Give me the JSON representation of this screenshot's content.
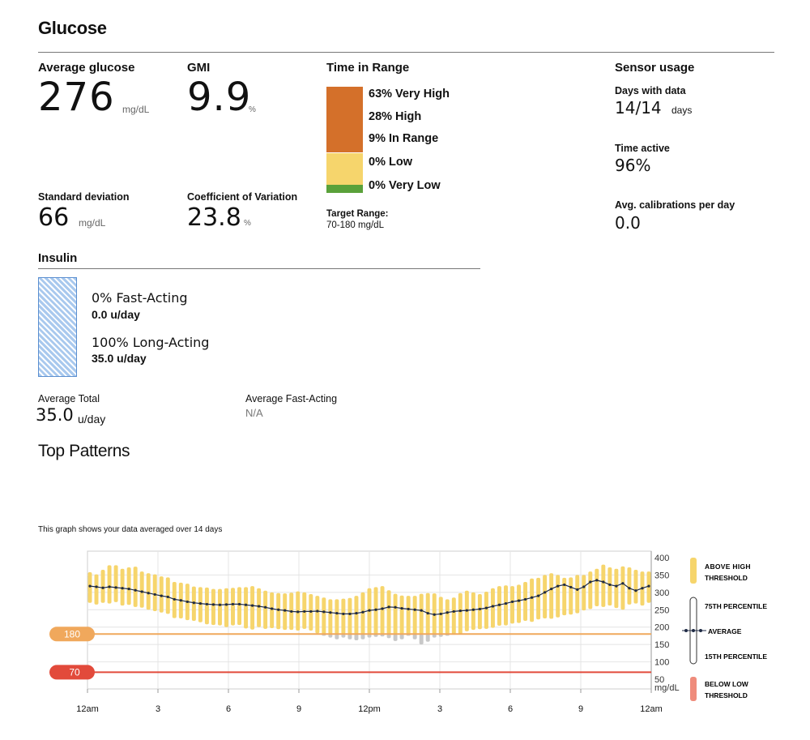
{
  "header": {
    "title": "Glucose"
  },
  "glucose": {
    "avg_label": "Average glucose",
    "avg_value": "276",
    "avg_unit": "mg/dL",
    "gmi_label": "GMI",
    "gmi_value": "9.9",
    "gmi_unit": "%",
    "sd_label": "Standard deviation",
    "sd_value": "66",
    "sd_unit": "mg/dL",
    "cv_label": "Coefficient of Variation",
    "cv_value": "23.8",
    "cv_unit": "%"
  },
  "time_in_range": {
    "title": "Time in Range",
    "items": [
      {
        "label": "63% Very High",
        "percent": 63,
        "color": "#d4702a"
      },
      {
        "label": "28% High",
        "percent": 28,
        "color": "#d4702a"
      },
      {
        "label": "9% In Range",
        "percent": 9,
        "color": "#f6d56c"
      },
      {
        "label": "0% Low",
        "percent": 0,
        "color": "#f6d56c"
      },
      {
        "label": "0% Very Low",
        "percent": 0,
        "color": "#5aa13a"
      }
    ],
    "target_label": "Target Range:",
    "target_value": "70-180 mg/dL"
  },
  "sensor": {
    "title": "Sensor usage",
    "days_label": "Days with data",
    "days_value": "14/14",
    "days_unit": "days",
    "active_label": "Time active",
    "active_value": "96%",
    "calib_label": "Avg. calibrations per day",
    "calib_value": "0.0"
  },
  "insulin": {
    "title": "Insulin",
    "fast_label": "0% Fast-Acting",
    "fast_value": "0.0 u/day",
    "long_label": "100% Long-Acting",
    "long_value": "35.0 u/day",
    "long_percent": 100,
    "avg_total_label": "Average Total",
    "avg_total_value": "35.0",
    "avg_total_unit": "u/day",
    "avg_fast_label": "Average Fast-Acting",
    "avg_fast_value": "N/A",
    "bar_color": "#a9c9ee"
  },
  "patterns": {
    "title": "Top Patterns",
    "note": "This graph shows your data averaged over 14 days"
  },
  "chart_data": {
    "type": "area",
    "x_ticks": [
      "12am",
      "3",
      "6",
      "9",
      "12pm",
      "3",
      "6",
      "9",
      "12am"
    ],
    "y_ticks": [
      "400",
      "350",
      "300",
      "250",
      "200",
      "150",
      "100",
      "50"
    ],
    "y_unit_label": "mg/dL",
    "ylim": [
      50,
      400
    ],
    "xlim_hours": [
      0,
      24
    ],
    "high_threshold": 180,
    "high_label": "180",
    "low_threshold": 70,
    "low_label": "70",
    "colors": {
      "above": "#f6d56c",
      "below_range": "#c8c8c8",
      "average": "#1f2a44",
      "high_line": "#f0a85c",
      "low_line": "#e24a3b",
      "below_low": "#ef8c7c"
    },
    "series": [
      {
        "name": "75TH PERCENTILE",
        "values": [
          358,
          352,
          365,
          378,
          378,
          368,
          372,
          374,
          360,
          355,
          352,
          346,
          343,
          330,
          328,
          325,
          317,
          315,
          314,
          310,
          310,
          312,
          313,
          315,
          315,
          318,
          312,
          305,
          300,
          298,
          297,
          299,
          303,
          300,
          295,
          290,
          285,
          280,
          280,
          282,
          284,
          290,
          300,
          312,
          315,
          318,
          306,
          296,
          291,
          290,
          290,
          296,
          298,
          297,
          287,
          280,
          285,
          298,
          305,
          300,
          295,
          302,
          312,
          318,
          320,
          318,
          322,
          330,
          340,
          342,
          350,
          355,
          350,
          342,
          343,
          350,
          350,
          360,
          368,
          380,
          372,
          368,
          375,
          372,
          365,
          360,
          360
        ]
      },
      {
        "name": "15TH PERCENTILE",
        "values": [
          270,
          265,
          270,
          268,
          272,
          262,
          264,
          258,
          256,
          250,
          246,
          242,
          238,
          226,
          225,
          220,
          218,
          214,
          208,
          206,
          205,
          200,
          205,
          206,
          196,
          193,
          200,
          195,
          197,
          194,
          192,
          192,
          190,
          195,
          190,
          182,
          175,
          170,
          165,
          170,
          165,
          162,
          165,
          170,
          172,
          173,
          168,
          160,
          165,
          175,
          165,
          150,
          158,
          170,
          172,
          175,
          178,
          180,
          188,
          192,
          194,
          195,
          198,
          204,
          205,
          210,
          212,
          218,
          215,
          222,
          225,
          224,
          228,
          234,
          236,
          240,
          248,
          252,
          260,
          258,
          262,
          255,
          250,
          265,
          268,
          262,
          270
        ]
      },
      {
        "name": "AVERAGE",
        "values": [
          318,
          316,
          313,
          316,
          314,
          312,
          310,
          306,
          302,
          298,
          294,
          290,
          287,
          280,
          277,
          273,
          270,
          268,
          266,
          265,
          264,
          265,
          266,
          266,
          264,
          262,
          260,
          257,
          253,
          250,
          248,
          245,
          244,
          245,
          245,
          246,
          244,
          242,
          240,
          238,
          238,
          240,
          243,
          248,
          250,
          253,
          258,
          257,
          254,
          252,
          250,
          248,
          240,
          236,
          238,
          242,
          245,
          247,
          248,
          250,
          252,
          255,
          260,
          264,
          268,
          273,
          276,
          280,
          285,
          290,
          300,
          310,
          318,
          322,
          315,
          308,
          316,
          330,
          335,
          330,
          322,
          318,
          326,
          312,
          305,
          312,
          318
        ]
      }
    ],
    "legend": [
      "ABOVE HIGH THRESHOLD",
      "75TH PERCENTILE",
      "AVERAGE",
      "15TH PERCENTILE",
      "BELOW LOW THRESHOLD"
    ]
  }
}
